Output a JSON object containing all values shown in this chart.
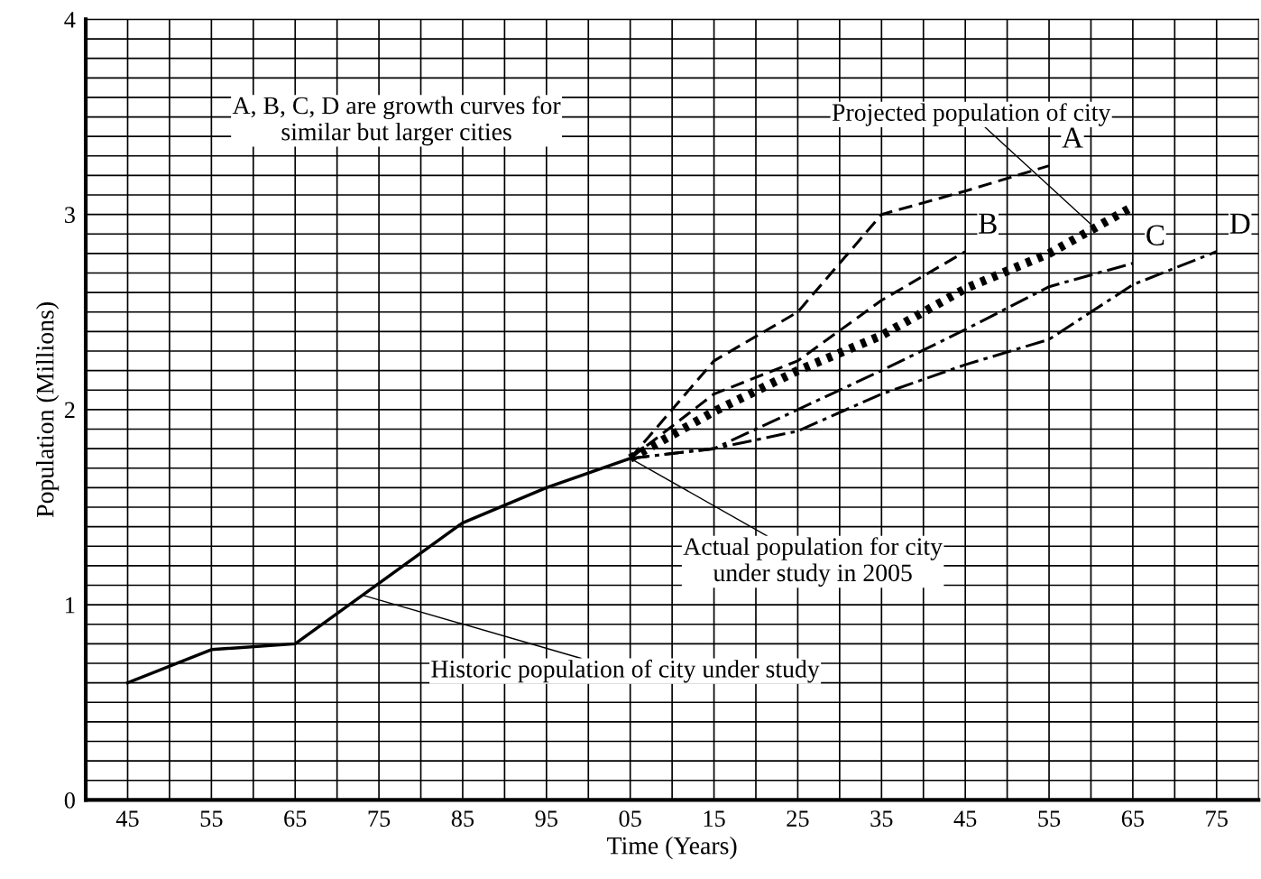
{
  "chart_data": {
    "type": "line",
    "xlabel": "Time (Years)",
    "ylabel": "Population (Millions)",
    "xlim": [
      1940,
      2080
    ],
    "ylim": [
      0,
      4
    ],
    "xticks": [
      {
        "value": 1945,
        "label": "45"
      },
      {
        "value": 1950,
        "label": null
      },
      {
        "value": 1955,
        "label": "55"
      },
      {
        "value": 1960,
        "label": null
      },
      {
        "value": 1965,
        "label": "65"
      },
      {
        "value": 1970,
        "label": null
      },
      {
        "value": 1975,
        "label": "75"
      },
      {
        "value": 1980,
        "label": null
      },
      {
        "value": 1985,
        "label": "85"
      },
      {
        "value": 1990,
        "label": null
      },
      {
        "value": 1995,
        "label": "95"
      },
      {
        "value": 2000,
        "label": null
      },
      {
        "value": 2005,
        "label": "05"
      },
      {
        "value": 2010,
        "label": null
      },
      {
        "value": 2015,
        "label": "15"
      },
      {
        "value": 2020,
        "label": null
      },
      {
        "value": 2025,
        "label": "25"
      },
      {
        "value": 2030,
        "label": null
      },
      {
        "value": 2035,
        "label": "35"
      },
      {
        "value": 2040,
        "label": null
      },
      {
        "value": 2045,
        "label": "45"
      },
      {
        "value": 2050,
        "label": null
      },
      {
        "value": 2055,
        "label": "55"
      },
      {
        "value": 2060,
        "label": null
      },
      {
        "value": 2065,
        "label": "65"
      },
      {
        "value": 2070,
        "label": null
      },
      {
        "value": 2075,
        "label": "75"
      }
    ],
    "yticks": [
      0,
      {
        "value": 0.1,
        "label": null
      },
      {
        "value": 0.2,
        "label": null
      },
      {
        "value": 0.3,
        "label": null
      },
      {
        "value": 0.4,
        "label": null
      },
      {
        "value": 0.5,
        "label": null
      },
      {
        "value": 0.6,
        "label": null
      },
      {
        "value": 0.7,
        "label": null
      },
      {
        "value": 0.8,
        "label": null
      },
      {
        "value": 0.9,
        "label": null
      },
      1,
      {
        "value": 1.1,
        "label": null
      },
      {
        "value": 1.2,
        "label": null
      },
      {
        "value": 1.3,
        "label": null
      },
      {
        "value": 1.4,
        "label": null
      },
      {
        "value": 1.5,
        "label": null
      },
      {
        "value": 1.6,
        "label": null
      },
      {
        "value": 1.7,
        "label": null
      },
      {
        "value": 1.8,
        "label": null
      },
      {
        "value": 1.9,
        "label": null
      },
      2,
      {
        "value": 2.1,
        "label": null
      },
      {
        "value": 2.2,
        "label": null
      },
      {
        "value": 2.3,
        "label": null
      },
      {
        "value": 2.4,
        "label": null
      },
      {
        "value": 2.5,
        "label": null
      },
      {
        "value": 2.6,
        "label": null
      },
      {
        "value": 2.7,
        "label": null
      },
      {
        "value": 2.8,
        "label": null
      },
      {
        "value": 2.9,
        "label": null
      },
      3,
      {
        "value": 3.1,
        "label": null
      },
      {
        "value": 3.2,
        "label": null
      },
      {
        "value": 3.3,
        "label": null
      },
      {
        "value": 3.4,
        "label": null
      },
      {
        "value": 3.5,
        "label": null
      },
      {
        "value": 3.6,
        "label": null
      },
      {
        "value": 3.7,
        "label": null
      },
      {
        "value": 3.8,
        "label": null
      },
      {
        "value": 3.9,
        "label": null
      },
      4
    ],
    "grid": true,
    "legend": false,
    "marker": "none",
    "series": [
      {
        "color": "#000000",
        "line_style": "solid",
        "x": [
          1945,
          1955,
          1965,
          1975,
          1985,
          1995,
          2005
        ],
        "values": [
          0.6,
          0.77,
          0.8,
          1.11,
          1.42,
          1.6,
          1.75
        ]
      },
      {
        "name": "A",
        "color": "#000000",
        "line_style": "dashed",
        "x": [
          2005,
          2015,
          2025,
          2035,
          2045,
          2055
        ],
        "values": [
          1.75,
          2.25,
          2.5,
          3.0,
          3.12,
          3.25
        ]
      },
      {
        "name": "B",
        "color": "#000000",
        "line_style": "dashed",
        "x": [
          2005,
          2015,
          2025,
          2035,
          2045
        ],
        "values": [
          1.75,
          2.08,
          2.25,
          2.56,
          2.81
        ]
      },
      {
        "color": "#000000",
        "line_style": "dotted",
        "x": [
          2005,
          2015,
          2025,
          2035,
          2045,
          2055,
          2065
        ],
        "values": [
          1.75,
          1.99,
          2.2,
          2.38,
          2.62,
          2.8,
          3.04
        ]
      },
      {
        "name": "C",
        "color": "#000000",
        "line_style": "dashdot",
        "x": [
          2005,
          2015,
          2025,
          2035,
          2045,
          2055,
          2065
        ],
        "values": [
          1.75,
          1.8,
          2.0,
          2.2,
          2.41,
          2.63,
          2.75
        ]
      },
      {
        "name": "D",
        "color": "#000000",
        "line_style": "dashdot",
        "x": [
          2005,
          2015,
          2025,
          2035,
          2045,
          2055,
          2065,
          2075
        ],
        "values": [
          1.75,
          1.8,
          1.89,
          2.08,
          2.23,
          2.36,
          2.64,
          2.81
        ]
      }
    ],
    "annotations": [
      "A, B, C, D are growth curves for\nsimilar but larger cities",
      {
        "text": "Projected population of city",
        "x": 2060,
        "y": 2.95
      },
      {
        "text": "Actual population for city\nunder study in 2005",
        "x": 2005,
        "y": 1.75
      },
      {
        "text": "Historic population of city under study",
        "x": 1973,
        "y": 1.05
      }
    ]
  }
}
